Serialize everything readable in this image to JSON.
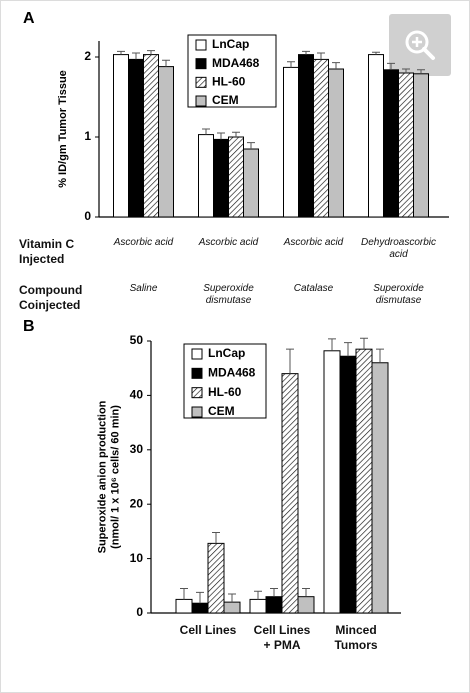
{
  "chart_data": [
    {
      "type": "bar",
      "panel": "A",
      "ylabel": [
        "% ID/gm Tumor Tissue"
      ],
      "ylim": [
        0,
        2.2
      ],
      "yticks": [
        0,
        1,
        2
      ],
      "categories": [
        "Ascorbic acid",
        "Ascorbic acid",
        "Ascorbic acid",
        "Dehydroascorbic acid"
      ],
      "row_labels": [
        "Vitamin C Injected",
        "Compound Coinjected"
      ],
      "coinjected": [
        "Saline",
        "Superoxide dismutase",
        "Catalase",
        "Superoxide dismutase"
      ],
      "series": [
        {
          "name": "LnCap",
          "color": "#ffffff",
          "values": [
            2.03,
            1.03,
            1.87,
            2.03
          ],
          "errors": [
            0.04,
            0.07,
            0.07,
            0.03
          ]
        },
        {
          "name": "MDA468",
          "color": "#000000",
          "values": [
            1.97,
            0.97,
            2.03,
            1.84
          ],
          "errors": [
            0.08,
            0.08,
            0.04,
            0.08
          ]
        },
        {
          "name": "HL-60",
          "color": "#ffffff",
          "pattern": "hatch",
          "values": [
            2.03,
            1.0,
            1.97,
            1.8
          ],
          "errors": [
            0.05,
            0.06,
            0.08,
            0.05
          ]
        },
        {
          "name": "CEM",
          "color": "#c0c0c0",
          "values": [
            1.88,
            0.85,
            1.85,
            1.79
          ],
          "errors": [
            0.08,
            0.08,
            0.08,
            0.05
          ]
        }
      ]
    },
    {
      "type": "bar",
      "panel": "B",
      "ylabel": [
        "Superoxide anion production",
        "(nmol/ 1 x 10⁶ cells/ 60 min)"
      ],
      "ylim": [
        0,
        50
      ],
      "yticks": [
        0,
        10,
        20,
        30,
        40,
        50
      ],
      "categories": [
        "Cell Lines",
        "Cell Lines + PMA",
        "Minced Tumors"
      ],
      "series": [
        {
          "name": "LnCap",
          "color": "#ffffff",
          "values": [
            2.5,
            2.5,
            48.2
          ],
          "errors": [
            2.0,
            1.5,
            2.2
          ]
        },
        {
          "name": "MDA468",
          "color": "#000000",
          "values": [
            1.8,
            3.0,
            47.2
          ],
          "errors": [
            2.0,
            1.5,
            2.5
          ]
        },
        {
          "name": "HL-60",
          "color": "#ffffff",
          "pattern": "hatch",
          "values": [
            12.8,
            44.0,
            48.5
          ],
          "errors": [
            2.0,
            4.5,
            2.0
          ]
        },
        {
          "name": "CEM",
          "color": "#c0c0c0",
          "values": [
            2.0,
            3.0,
            46.0
          ],
          "errors": [
            1.5,
            1.5,
            2.5
          ]
        }
      ]
    }
  ]
}
